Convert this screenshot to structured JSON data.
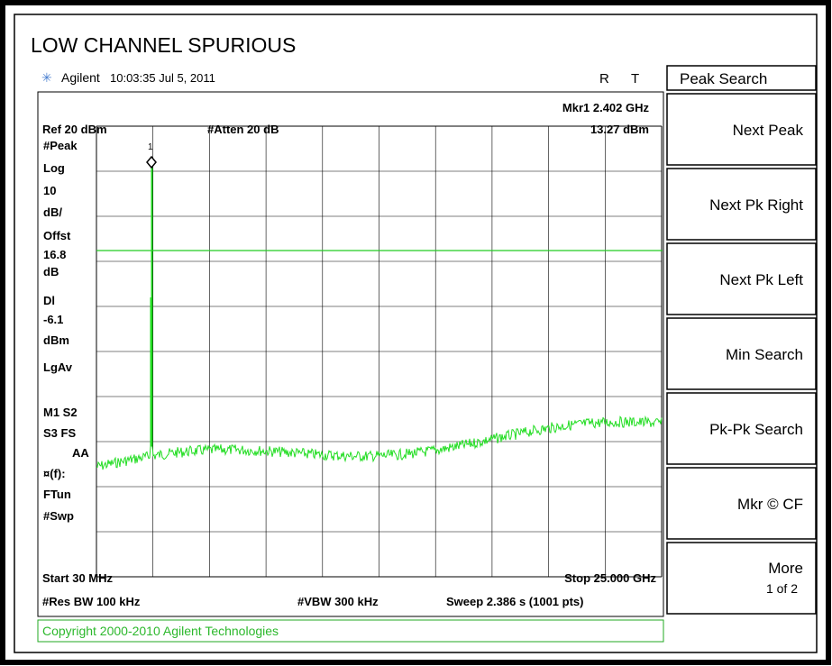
{
  "title": "LOW CHANNEL SPURIOUS",
  "status": {
    "brand": "Agilent",
    "timestamp": "10:03:35  Jul 5, 2011",
    "r": "R",
    "t": "T"
  },
  "screen": {
    "marker_freq": "Mkr1  2.402 GHz",
    "marker_level": "13.27 dBm",
    "ref": "Ref 20 dBm",
    "atten": "#Atten 20 dB",
    "marker_id": "1",
    "left_labels": [
      "#Peak",
      "Log",
      "10",
      "dB/",
      "Offst",
      "16.8",
      "dB",
      "Dl",
      "-6.1",
      "dBm",
      "LgAv",
      "M1  S2",
      "S3  FS",
      "AA",
      "¤(f):",
      "FTun",
      "#Swp"
    ],
    "start": "Start 30 MHz",
    "stop": "Stop 25.000 GHz",
    "res_bw": "#Res BW 100 kHz",
    "vbw": "#VBW 300 kHz",
    "sweep": "Sweep 2.386 s (1001 pts)"
  },
  "copyright": "Copyright 2000-2010 Agilent Technologies",
  "softkeys": {
    "menu_title": "Peak Search",
    "keys": [
      "Next Peak",
      "Next Pk Right",
      "Next Pk Left",
      "Min Search",
      "Pk-Pk Search",
      "Mkr © CF",
      "More"
    ],
    "more_page": "1 of 2"
  }
}
